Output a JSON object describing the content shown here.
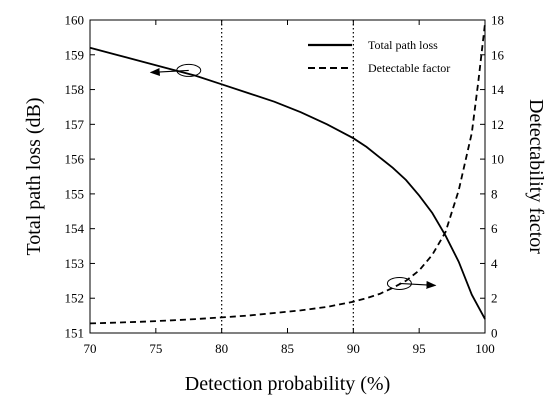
{
  "chart_data": {
    "type": "line",
    "xlabel": "Detection probability (%)",
    "ylabel_left": "Total path loss (dB)",
    "ylabel_right": "Detectability factor",
    "xlim": [
      70,
      100
    ],
    "ylim_left": [
      151,
      160
    ],
    "ylim_right": [
      0,
      18
    ],
    "x_ticks": [
      "70",
      "75",
      "80",
      "85",
      "90",
      "95",
      "100"
    ],
    "y_left_ticks": [
      "151",
      "152",
      "153",
      "154",
      "155",
      "156",
      "157",
      "158",
      "159",
      "160"
    ],
    "y_right_ticks": [
      "0",
      "2",
      "4",
      "6",
      "8",
      "10",
      "12",
      "14",
      "16",
      "18"
    ],
    "vertical_reference_lines": [
      80,
      90
    ],
    "legend_position": "top-right",
    "series": [
      {
        "name": "Total path loss",
        "axis": "left",
        "style": "solid",
        "x": [
          70,
          72,
          74,
          76,
          78,
          80,
          82,
          84,
          86,
          88,
          90,
          91,
          92,
          93,
          94,
          95,
          96,
          97,
          98,
          99,
          100
        ],
        "y": [
          159.2,
          159.0,
          158.8,
          158.6,
          158.4,
          158.15,
          157.9,
          157.65,
          157.35,
          157.0,
          156.6,
          156.35,
          156.05,
          155.75,
          155.4,
          154.95,
          154.45,
          153.8,
          153.05,
          152.1,
          151.4
        ]
      },
      {
        "name": "Detectable factor",
        "axis": "right",
        "style": "dashed",
        "x": [
          70,
          72,
          74,
          76,
          78,
          80,
          82,
          84,
          86,
          88,
          90,
          91,
          92,
          93,
          94,
          95,
          96,
          97,
          98,
          99,
          99.5,
          100
        ],
        "y": [
          0.55,
          0.6,
          0.65,
          0.72,
          0.8,
          0.9,
          1.0,
          1.15,
          1.3,
          1.5,
          1.8,
          2.0,
          2.25,
          2.6,
          3.0,
          3.6,
          4.5,
          5.8,
          8.2,
          11.5,
          14.5,
          17.8
        ]
      }
    ],
    "annotations": [
      {
        "target_series": "Total path loss",
        "points_to": "left axis",
        "x": 77.5,
        "y": 158.55
      },
      {
        "target_series": "Detectable factor",
        "points_to": "right axis",
        "x": 93.5,
        "y": 2.85
      }
    ]
  }
}
